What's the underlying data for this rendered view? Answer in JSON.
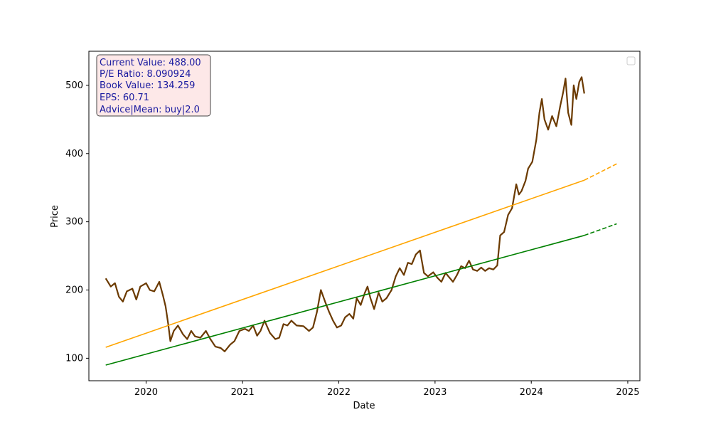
{
  "chart_data": {
    "type": "line",
    "title": "",
    "xlabel": "Date",
    "ylabel": "Price",
    "xlim": [
      "2019-05-29",
      "2025-02-16"
    ],
    "ylim": [
      67,
      550
    ],
    "x_ticks": [
      "2020",
      "2021",
      "2022",
      "2023",
      "2024",
      "2025"
    ],
    "y_ticks": [
      100,
      200,
      300,
      400,
      500
    ],
    "grid": false,
    "legend": "top-right, empty",
    "info_box": {
      "lines": [
        "Current Value: 488.00",
        "P/E Ratio: 8.090924",
        "Book Value: 134.259",
        "EPS: 60.71",
        "Advice|Mean: buy|2.0"
      ],
      "text_color": "#1a1aa0",
      "background": "#fde8e8",
      "border": "#444444"
    },
    "series": [
      {
        "color": "#6b3a00",
        "style": "solid",
        "points": [
          [
            "2019-08-01",
            217
          ],
          [
            "2019-08-20",
            205
          ],
          [
            "2019-09-05",
            210
          ],
          [
            "2019-09-20",
            190
          ],
          [
            "2019-10-05",
            183
          ],
          [
            "2019-10-20",
            198
          ],
          [
            "2019-11-10",
            202
          ],
          [
            "2019-11-25",
            186
          ],
          [
            "2019-12-10",
            205
          ],
          [
            "2020-01-01",
            210
          ],
          [
            "2020-01-15",
            200
          ],
          [
            "2020-02-01",
            198
          ],
          [
            "2020-02-20",
            212
          ],
          [
            "2020-03-05",
            192
          ],
          [
            "2020-03-15",
            176
          ],
          [
            "2020-03-25",
            150
          ],
          [
            "2020-04-02",
            125
          ],
          [
            "2020-04-15",
            140
          ],
          [
            "2020-05-01",
            148
          ],
          [
            "2020-05-20",
            135
          ],
          [
            "2020-06-05",
            128
          ],
          [
            "2020-06-20",
            140
          ],
          [
            "2020-07-05",
            132
          ],
          [
            "2020-07-25",
            130
          ],
          [
            "2020-08-15",
            140
          ],
          [
            "2020-09-01",
            128
          ],
          [
            "2020-09-20",
            117
          ],
          [
            "2020-10-10",
            115
          ],
          [
            "2020-10-25",
            110
          ],
          [
            "2020-11-15",
            120
          ],
          [
            "2020-12-01",
            125
          ],
          [
            "2020-12-20",
            140
          ],
          [
            "2021-01-10",
            143
          ],
          [
            "2021-01-25",
            140
          ],
          [
            "2021-02-10",
            148
          ],
          [
            "2021-02-25",
            133
          ],
          [
            "2021-03-10",
            140
          ],
          [
            "2021-03-25",
            155
          ],
          [
            "2021-04-15",
            137
          ],
          [
            "2021-05-05",
            128
          ],
          [
            "2021-05-20",
            130
          ],
          [
            "2021-06-05",
            150
          ],
          [
            "2021-06-20",
            148
          ],
          [
            "2021-07-05",
            155
          ],
          [
            "2021-07-25",
            148
          ],
          [
            "2021-08-20",
            147
          ],
          [
            "2021-09-10",
            140
          ],
          [
            "2021-09-25",
            145
          ],
          [
            "2021-10-10",
            168
          ],
          [
            "2021-10-25",
            200
          ],
          [
            "2021-11-10",
            183
          ],
          [
            "2021-11-25",
            168
          ],
          [
            "2021-12-10",
            155
          ],
          [
            "2021-12-25",
            145
          ],
          [
            "2022-01-10",
            148
          ],
          [
            "2022-01-25",
            160
          ],
          [
            "2022-02-10",
            165
          ],
          [
            "2022-02-25",
            158
          ],
          [
            "2022-03-10",
            188
          ],
          [
            "2022-03-25",
            178
          ],
          [
            "2022-04-10",
            196
          ],
          [
            "2022-04-20",
            205
          ],
          [
            "2022-05-01",
            188
          ],
          [
            "2022-05-15",
            172
          ],
          [
            "2022-06-01",
            196
          ],
          [
            "2022-06-15",
            183
          ],
          [
            "2022-07-01",
            188
          ],
          [
            "2022-07-20",
            200
          ],
          [
            "2022-08-05",
            220
          ],
          [
            "2022-08-20",
            232
          ],
          [
            "2022-09-05",
            222
          ],
          [
            "2022-09-20",
            240
          ],
          [
            "2022-10-05",
            238
          ],
          [
            "2022-10-20",
            252
          ],
          [
            "2022-11-05",
            258
          ],
          [
            "2022-11-20",
            225
          ],
          [
            "2022-12-05",
            220
          ],
          [
            "2022-12-25",
            226
          ],
          [
            "2023-01-10",
            218
          ],
          [
            "2023-01-25",
            212
          ],
          [
            "2023-02-10",
            225
          ],
          [
            "2023-02-25",
            218
          ],
          [
            "2023-03-10",
            212
          ],
          [
            "2023-03-25",
            222
          ],
          [
            "2023-04-10",
            235
          ],
          [
            "2023-04-25",
            232
          ],
          [
            "2023-05-10",
            243
          ],
          [
            "2023-05-25",
            230
          ],
          [
            "2023-06-10",
            228
          ],
          [
            "2023-06-25",
            233
          ],
          [
            "2023-07-10",
            228
          ],
          [
            "2023-07-25",
            232
          ],
          [
            "2023-08-10",
            230
          ],
          [
            "2023-08-25",
            236
          ],
          [
            "2023-09-05",
            280
          ],
          [
            "2023-09-20",
            285
          ],
          [
            "2023-10-05",
            310
          ],
          [
            "2023-10-20",
            320
          ],
          [
            "2023-11-05",
            355
          ],
          [
            "2023-11-15",
            340
          ],
          [
            "2023-11-25",
            345
          ],
          [
            "2023-12-10",
            360
          ],
          [
            "2023-12-20",
            378
          ],
          [
            "2024-01-05",
            388
          ],
          [
            "2024-01-20",
            420
          ],
          [
            "2024-02-01",
            460
          ],
          [
            "2024-02-10",
            480
          ],
          [
            "2024-02-20",
            450
          ],
          [
            "2024-03-05",
            435
          ],
          [
            "2024-03-20",
            455
          ],
          [
            "2024-04-05",
            440
          ],
          [
            "2024-04-20",
            470
          ],
          [
            "2024-05-01",
            490
          ],
          [
            "2024-05-10",
            510
          ],
          [
            "2024-05-20",
            460
          ],
          [
            "2024-06-01",
            442
          ],
          [
            "2024-06-10",
            500
          ],
          [
            "2024-06-20",
            480
          ],
          [
            "2024-07-01",
            505
          ],
          [
            "2024-07-10",
            512
          ],
          [
            "2024-07-20",
            488
          ]
        ]
      },
      {
        "color": "#ffa500",
        "style": "solid",
        "points": [
          [
            "2019-08-01",
            116
          ],
          [
            "2024-07-20",
            361
          ]
        ]
      },
      {
        "color": "#ffa500",
        "style": "dashed",
        "points": [
          [
            "2024-07-20",
            361
          ],
          [
            "2024-11-20",
            385
          ]
        ]
      },
      {
        "color": "#008000",
        "style": "solid",
        "points": [
          [
            "2019-08-01",
            90
          ],
          [
            "2024-07-20",
            280
          ]
        ]
      },
      {
        "color": "#008000",
        "style": "dashed",
        "points": [
          [
            "2024-07-20",
            280
          ],
          [
            "2024-11-20",
            297
          ]
        ]
      }
    ]
  }
}
